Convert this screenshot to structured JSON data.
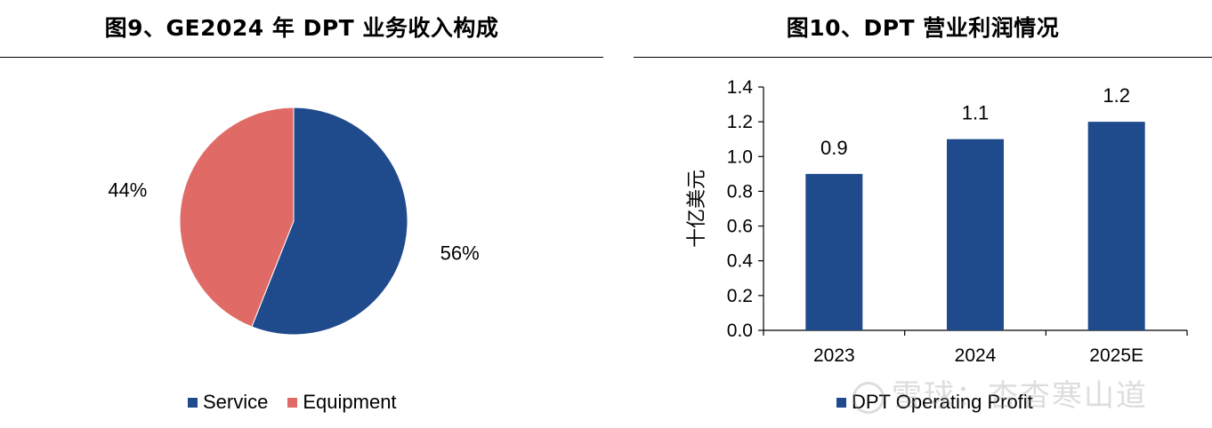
{
  "left": {
    "title": "图9、GE2024 年 DPT 业务收入构成",
    "chart_data": {
      "type": "pie",
      "title": "图9、GE2024 年 DPT 业务收入构成",
      "slices": [
        {
          "name": "Service",
          "value": 56,
          "label": "56%",
          "color": "#1f4a8c"
        },
        {
          "name": "Equipment",
          "value": 44,
          "label": "44%",
          "color": "#e06b66"
        }
      ],
      "legend_position": "bottom"
    },
    "legend": [
      {
        "label": "Service",
        "color": "#1f4a8c"
      },
      {
        "label": "Equipment",
        "color": "#e06b66"
      }
    ]
  },
  "right": {
    "title": "图10、DPT 营业利润情况",
    "chart_data": {
      "type": "bar",
      "title": "图10、DPT 营业利润情况",
      "categories": [
        "2023",
        "2024",
        "2025E"
      ],
      "series": [
        {
          "name": "DPT Operating Profit",
          "values": [
            0.9,
            1.1,
            1.2
          ],
          "color": "#1f4a8c"
        }
      ],
      "data_labels": [
        "0.9",
        "1.1",
        "1.2"
      ],
      "ylabel": "十亿美元",
      "ylim": [
        0,
        1.4
      ],
      "yticks": [
        "0.0",
        "0.2",
        "0.4",
        "0.6",
        "0.8",
        "1.0",
        "1.2",
        "1.4"
      ],
      "grid": false,
      "legend_position": "bottom"
    },
    "legend": [
      {
        "label": "DPT Operating Profit",
        "color": "#1f4a8c"
      }
    ]
  },
  "watermark": "雪球：杏杳寒山道"
}
